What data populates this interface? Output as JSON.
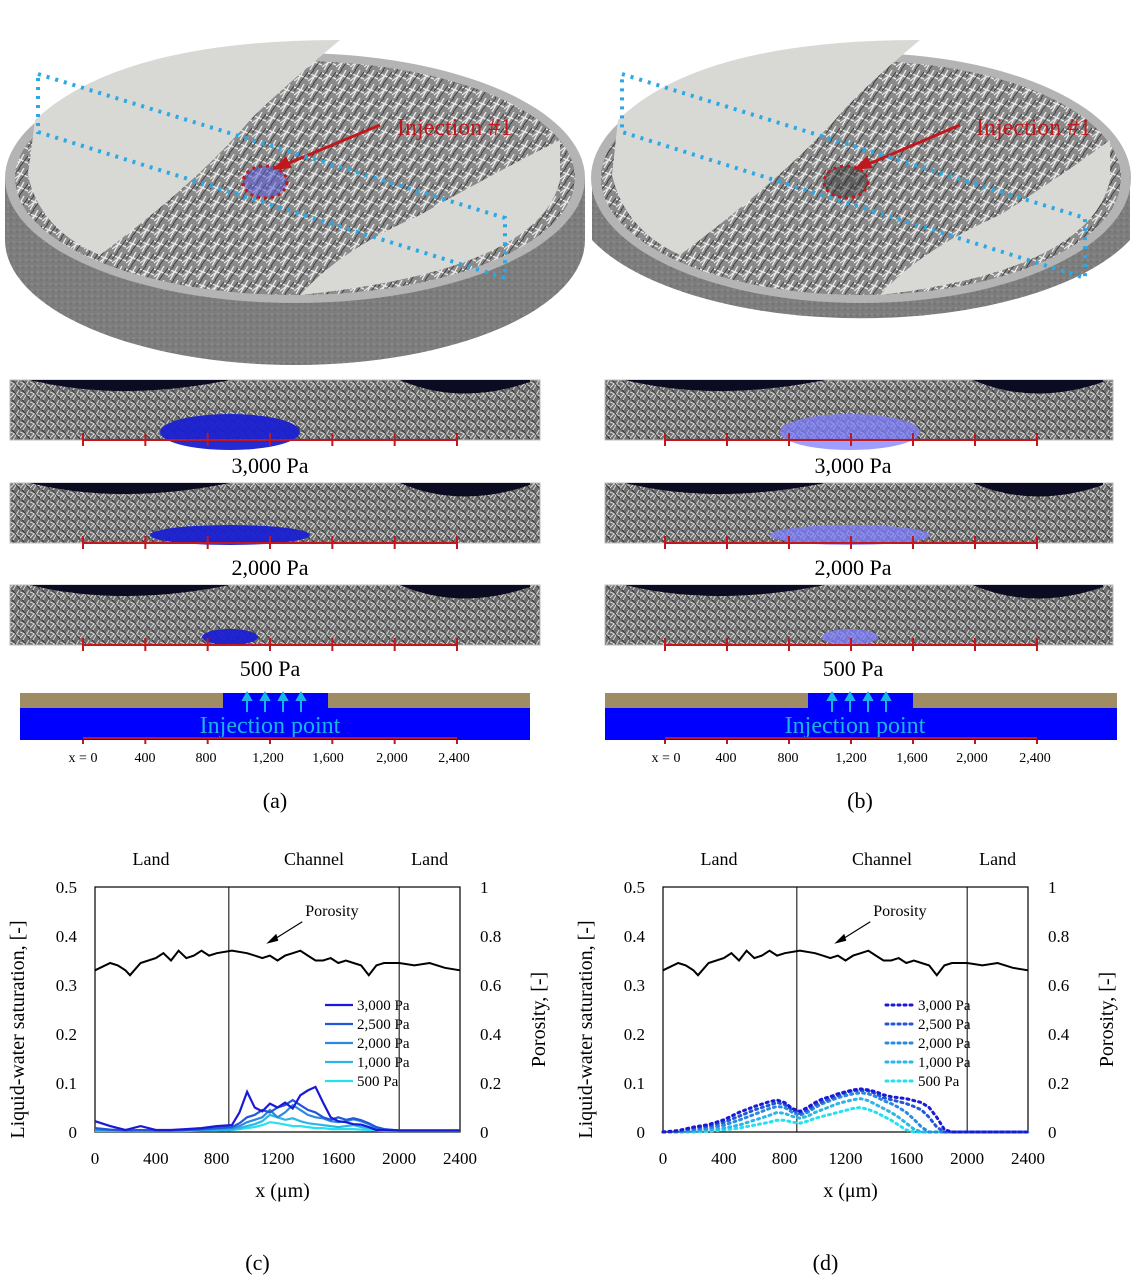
{
  "panels": {
    "a": {
      "label": "(a)",
      "injection_label": "Injection #1",
      "pressure_labels": [
        "3,000 Pa",
        "2,000 Pa",
        "500 Pa"
      ],
      "injection_point_label": "Injection point",
      "axis_ticks": [
        "x = 0",
        "400",
        "800",
        "1,200",
        "1,600",
        "2,000",
        "2,400"
      ],
      "water_style": "dark blue"
    },
    "b": {
      "label": "(b)",
      "injection_label": "Injection #1",
      "pressure_labels": [
        "3,000 Pa",
        "2,000 Pa",
        "500 Pa"
      ],
      "injection_point_label": "Injection point",
      "axis_ticks": [
        "x = 0",
        "400",
        "800",
        "1,200",
        "1,600",
        "2,000",
        "2,400"
      ],
      "water_style": "light blue"
    }
  },
  "colors": {
    "injection_red": "#c0181c",
    "dotted_box": "#29a9e6",
    "water_dark": "#1a1fd0",
    "water_light": "#7d7dff",
    "injection_blue": "#0000ff",
    "gdl_tan": "#a08c64",
    "arrow_cyan": "#18b4e8",
    "s3000": "#1a1ad6",
    "s2500": "#2356d9",
    "s2000": "#2b8adf",
    "s1000": "#2bb6e6",
    "s500": "#27e0ee"
  },
  "chart_data": [
    {
      "panel": "(c)",
      "type": "line",
      "region_labels": [
        "Land",
        "Channel",
        "Land"
      ],
      "region_boundaries": [
        880,
        2000
      ],
      "xlabel": "x (μm)",
      "ylabel": "Liquid-water saturation, [-]",
      "y2label": "Porosity, [-]",
      "xlim": [
        0,
        2400
      ],
      "ylim": [
        0,
        0.5
      ],
      "y2lim": [
        0,
        1
      ],
      "xticks": [
        "0",
        "400",
        "800",
        "1200",
        "1600",
        "2000",
        "2400"
      ],
      "yticks": [
        "0",
        "0.1",
        "0.2",
        "0.3",
        "0.4",
        "0.5"
      ],
      "y2ticks": [
        "0",
        "0.2",
        "0.4",
        "0.6",
        "0.8",
        "1"
      ],
      "annotation": "Porosity",
      "line_style": "solid",
      "legend_position": "right-center",
      "porosity": {
        "x": [
          0,
          100,
          150,
          200,
          230,
          300,
          400,
          450,
          500,
          550,
          600,
          650,
          700,
          750,
          800,
          900,
          1000,
          1050,
          1100,
          1150,
          1200,
          1250,
          1300,
          1350,
          1400,
          1450,
          1500,
          1550,
          1600,
          1650,
          1700,
          1750,
          1800,
          1850,
          1900,
          2000,
          2100,
          2200,
          2300,
          2400
        ],
        "y": [
          0.66,
          0.69,
          0.68,
          0.66,
          0.64,
          0.69,
          0.71,
          0.73,
          0.7,
          0.74,
          0.71,
          0.72,
          0.74,
          0.72,
          0.73,
          0.74,
          0.73,
          0.72,
          0.71,
          0.72,
          0.7,
          0.72,
          0.73,
          0.74,
          0.72,
          0.7,
          0.7,
          0.71,
          0.69,
          0.7,
          0.69,
          0.68,
          0.64,
          0.68,
          0.69,
          0.69,
          0.68,
          0.69,
          0.67,
          0.66
        ]
      },
      "x": [
        0,
        100,
        200,
        300,
        400,
        500,
        600,
        700,
        800,
        900,
        950,
        1000,
        1050,
        1100,
        1150,
        1200,
        1250,
        1300,
        1350,
        1400,
        1450,
        1500,
        1550,
        1600,
        1650,
        1700,
        1750,
        1800,
        1850,
        1900,
        2000,
        2100,
        2200,
        2300,
        2400
      ],
      "series": [
        {
          "name": "3,000 Pa",
          "values": [
            0.022,
            0.012,
            0.004,
            0.012,
            0.004,
            0.004,
            0.006,
            0.008,
            0.012,
            0.014,
            0.04,
            0.082,
            0.05,
            0.042,
            0.058,
            0.05,
            0.06,
            0.048,
            0.075,
            0.085,
            0.092,
            0.06,
            0.03,
            0.022,
            0.02,
            0.016,
            0.015,
            0.01,
            0.004,
            0.004,
            0.003,
            0.003,
            0.003,
            0.003,
            0.003
          ]
        },
        {
          "name": "2,500 Pa",
          "values": [
            0.008,
            0.005,
            0.003,
            0.004,
            0.003,
            0.003,
            0.004,
            0.006,
            0.008,
            0.01,
            0.018,
            0.03,
            0.035,
            0.045,
            0.04,
            0.05,
            0.055,
            0.065,
            0.055,
            0.045,
            0.04,
            0.03,
            0.025,
            0.03,
            0.025,
            0.028,
            0.024,
            0.018,
            0.01,
            0.006,
            0.003,
            0.003,
            0.003,
            0.003,
            0.003
          ]
        },
        {
          "name": "2,000 Pa",
          "values": [
            0.005,
            0.004,
            0.003,
            0.003,
            0.003,
            0.003,
            0.004,
            0.005,
            0.007,
            0.008,
            0.012,
            0.02,
            0.025,
            0.03,
            0.045,
            0.03,
            0.04,
            0.055,
            0.045,
            0.035,
            0.03,
            0.028,
            0.022,
            0.02,
            0.022,
            0.026,
            0.022,
            0.016,
            0.008,
            0.004,
            0.003,
            0.003,
            0.003,
            0.003,
            0.003
          ]
        },
        {
          "name": "1,000 Pa",
          "values": [
            0.003,
            0.003,
            0.003,
            0.003,
            0.003,
            0.003,
            0.003,
            0.004,
            0.004,
            0.005,
            0.008,
            0.012,
            0.016,
            0.022,
            0.035,
            0.03,
            0.025,
            0.028,
            0.022,
            0.018,
            0.016,
            0.014,
            0.012,
            0.01,
            0.012,
            0.014,
            0.01,
            0.008,
            0.005,
            0.003,
            0.003,
            0.003,
            0.003,
            0.003,
            0.003
          ]
        },
        {
          "name": "500 Pa",
          "values": [
            0.002,
            0.002,
            0.002,
            0.002,
            0.002,
            0.002,
            0.002,
            0.003,
            0.003,
            0.004,
            0.006,
            0.008,
            0.01,
            0.014,
            0.02,
            0.018,
            0.015,
            0.012,
            0.012,
            0.01,
            0.008,
            0.008,
            0.006,
            0.006,
            0.006,
            0.006,
            0.005,
            0.004,
            0.003,
            0.002,
            0.002,
            0.002,
            0.002,
            0.002,
            0.002
          ]
        }
      ]
    },
    {
      "panel": "(d)",
      "type": "line",
      "region_labels": [
        "Land",
        "Channel",
        "Land"
      ],
      "region_boundaries": [
        880,
        2000
      ],
      "xlabel": "x (μm)",
      "ylabel": "Liquid-water saturation, [-]",
      "y2label": "Porosity, [-]",
      "xlim": [
        0,
        2400
      ],
      "ylim": [
        0,
        0.5
      ],
      "y2lim": [
        0,
        1
      ],
      "xticks": [
        "0",
        "400",
        "800",
        "1200",
        "1600",
        "2000",
        "2400"
      ],
      "yticks": [
        "0",
        "0.1",
        "0.2",
        "0.3",
        "0.4",
        "0.5"
      ],
      "y2ticks": [
        "0",
        "0.2",
        "0.4",
        "0.6",
        "0.8",
        "1"
      ],
      "annotation": "Porosity",
      "line_style": "dotted",
      "legend_position": "right-center",
      "porosity": {
        "x": [
          0,
          100,
          150,
          200,
          230,
          300,
          400,
          450,
          500,
          550,
          600,
          650,
          700,
          750,
          800,
          900,
          1000,
          1050,
          1100,
          1150,
          1200,
          1250,
          1300,
          1350,
          1400,
          1450,
          1500,
          1550,
          1600,
          1650,
          1700,
          1750,
          1800,
          1850,
          1900,
          2000,
          2100,
          2200,
          2300,
          2400
        ],
        "y": [
          0.66,
          0.69,
          0.68,
          0.66,
          0.64,
          0.69,
          0.71,
          0.73,
          0.7,
          0.74,
          0.71,
          0.72,
          0.74,
          0.72,
          0.73,
          0.74,
          0.73,
          0.72,
          0.71,
          0.72,
          0.7,
          0.72,
          0.73,
          0.74,
          0.72,
          0.7,
          0.7,
          0.71,
          0.69,
          0.7,
          0.69,
          0.68,
          0.64,
          0.68,
          0.69,
          0.69,
          0.68,
          0.69,
          0.67,
          0.66
        ]
      },
      "x": [
        0,
        100,
        200,
        300,
        400,
        500,
        600,
        700,
        750,
        800,
        850,
        900,
        950,
        1000,
        1050,
        1100,
        1150,
        1200,
        1250,
        1300,
        1350,
        1400,
        1450,
        1500,
        1550,
        1600,
        1650,
        1700,
        1750,
        1800,
        1850,
        1900,
        2000,
        2100,
        2200,
        2300,
        2400
      ],
      "series": [
        {
          "name": "3,000 Pa",
          "values": [
            0.0,
            0.003,
            0.01,
            0.015,
            0.025,
            0.04,
            0.052,
            0.062,
            0.065,
            0.06,
            0.048,
            0.042,
            0.05,
            0.06,
            0.068,
            0.072,
            0.078,
            0.082,
            0.086,
            0.088,
            0.086,
            0.082,
            0.076,
            0.072,
            0.07,
            0.068,
            0.064,
            0.06,
            0.05,
            0.03,
            0.005,
            0.0,
            0.0,
            0.0,
            0.0,
            0.0,
            0.0
          ]
        },
        {
          "name": "2,500 Pa",
          "values": [
            0.0,
            0.002,
            0.008,
            0.012,
            0.02,
            0.032,
            0.045,
            0.055,
            0.06,
            0.056,
            0.045,
            0.038,
            0.045,
            0.055,
            0.062,
            0.068,
            0.074,
            0.08,
            0.084,
            0.085,
            0.084,
            0.078,
            0.07,
            0.066,
            0.062,
            0.058,
            0.052,
            0.045,
            0.03,
            0.01,
            0.0,
            0.0,
            0.0,
            0.0,
            0.0,
            0.0,
            0.0
          ]
        },
        {
          "name": "2,000 Pa",
          "values": [
            0.0,
            0.0,
            0.004,
            0.008,
            0.014,
            0.024,
            0.036,
            0.048,
            0.052,
            0.05,
            0.04,
            0.034,
            0.04,
            0.05,
            0.058,
            0.064,
            0.07,
            0.074,
            0.078,
            0.08,
            0.078,
            0.072,
            0.064,
            0.058,
            0.05,
            0.04,
            0.026,
            0.01,
            0.0,
            0.0,
            0.0,
            0.0,
            0.0,
            0.0,
            0.0,
            0.0,
            0.0
          ]
        },
        {
          "name": "1,000 Pa",
          "values": [
            0.0,
            0.0,
            0.002,
            0.004,
            0.008,
            0.014,
            0.024,
            0.034,
            0.04,
            0.038,
            0.032,
            0.028,
            0.032,
            0.04,
            0.046,
            0.052,
            0.058,
            0.062,
            0.066,
            0.068,
            0.064,
            0.056,
            0.048,
            0.04,
            0.03,
            0.018,
            0.006,
            0.0,
            0.0,
            0.0,
            0.0,
            0.0,
            0.0,
            0.0,
            0.0,
            0.0,
            0.0
          ]
        },
        {
          "name": "500 Pa",
          "values": [
            0.0,
            0.0,
            0.0,
            0.002,
            0.004,
            0.008,
            0.014,
            0.02,
            0.024,
            0.024,
            0.02,
            0.018,
            0.022,
            0.028,
            0.032,
            0.036,
            0.04,
            0.044,
            0.048,
            0.05,
            0.046,
            0.04,
            0.032,
            0.024,
            0.014,
            0.004,
            0.0,
            0.0,
            0.0,
            0.0,
            0.0,
            0.0,
            0.0,
            0.0,
            0.0,
            0.0,
            0.0
          ]
        }
      ]
    }
  ]
}
